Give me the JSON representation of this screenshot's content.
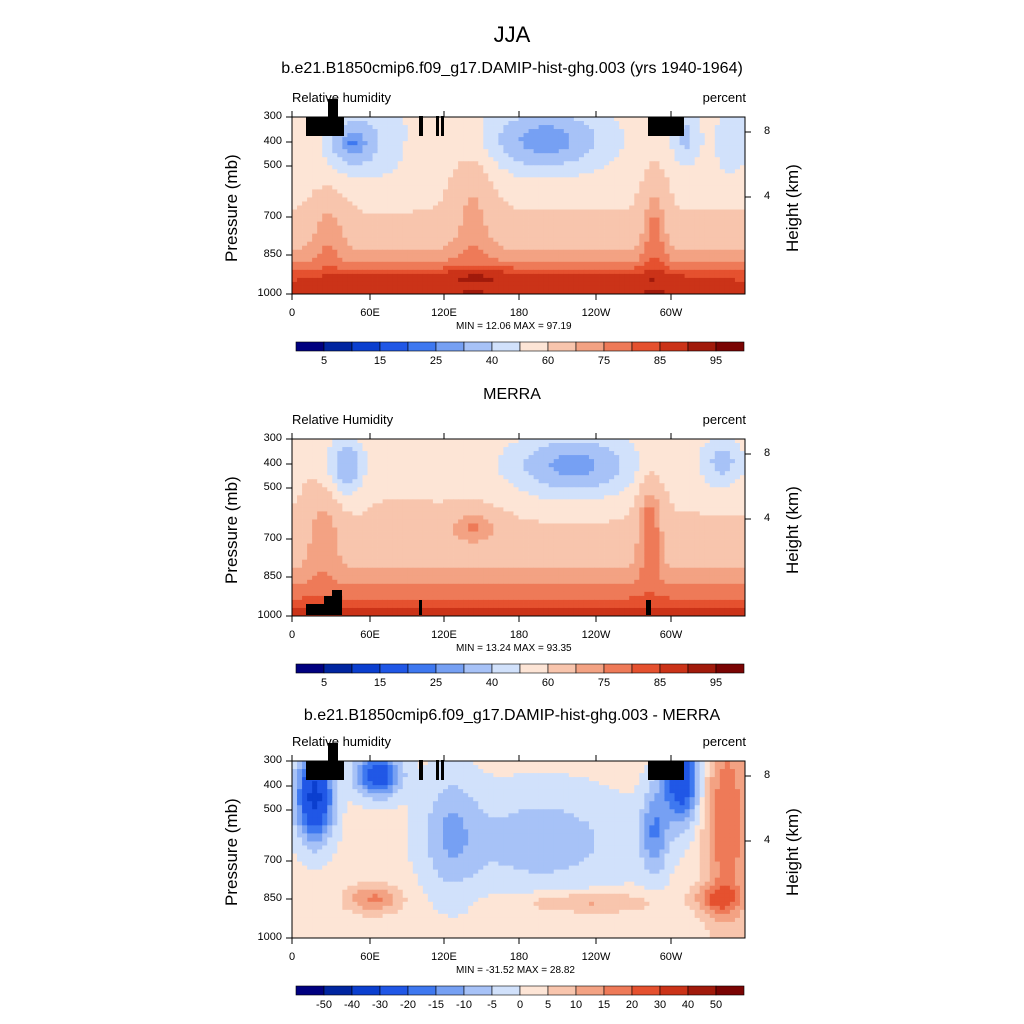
{
  "title": "JJA",
  "panels": [
    {
      "title": "b.e21.B1850cmip6.f09_g17.DAMIP-hist-ghg.003 (yrs 1940-1964)",
      "left_label": "Relative humidity",
      "right_label": "percent",
      "minmax": "MIN =  12.06  MAX =  97.19",
      "colorbar_labels": [
        "5",
        "15",
        "25",
        "40",
        "60",
        "75",
        "85",
        "95"
      ]
    },
    {
      "title": "MERRA",
      "left_label": "Relative Humidity",
      "right_label": "percent",
      "minmax": "MIN =  13.24  MAX =  93.35",
      "colorbar_labels": [
        "5",
        "15",
        "25",
        "40",
        "60",
        "75",
        "85",
        "95"
      ]
    },
    {
      "title": "b.e21.B1850cmip6.f09_g17.DAMIP-hist-ghg.003 - MERRA",
      "left_label": "Relative humidity",
      "right_label": "percent",
      "minmax": "MIN = -31.52  MAX =  28.82",
      "colorbar_labels": [
        "-50",
        "-40",
        "-30",
        "-20",
        "-15",
        "-10",
        "-5",
        "0",
        "5",
        "10",
        "15",
        "20",
        "30",
        "40",
        "50"
      ]
    }
  ],
  "axes": {
    "ylabel": "Pressure (mb)",
    "y2label": "Height (km)",
    "yticks": [
      "300",
      "400",
      "500",
      "700",
      "850",
      "1000"
    ],
    "xticks": [
      "0",
      "60E",
      "120E",
      "180",
      "120W",
      "60W"
    ],
    "y2ticks": [
      "8",
      "4"
    ]
  },
  "colors": {
    "abs_scale": [
      "#00007f",
      "#0025a0",
      "#0b3fcf",
      "#2057e6",
      "#3e78f0",
      "#76a0f3",
      "#a7c2f7",
      "#d1e1fb",
      "#fde5d6",
      "#f8c5ad",
      "#f3a283",
      "#ee7a58",
      "#e5512f",
      "#cb3318",
      "#a11a0b",
      "#7a0403"
    ],
    "diff_scale": [
      "#00007f",
      "#0025a0",
      "#0b3fcf",
      "#2057e6",
      "#3e78f0",
      "#76a0f3",
      "#a7c2f7",
      "#d1e1fb",
      "#fde5d6",
      "#f8c5ad",
      "#f3a283",
      "#ee7a58",
      "#e5512f",
      "#cb3318",
      "#a11a0b",
      "#7a0403"
    ]
  },
  "chart_data": [
    {
      "type": "heatmap",
      "title": "b.e21.B1850cmip6.f09_g17.DAMIP-hist-ghg.003 (yrs 1940-1964)",
      "variable": "Relative humidity",
      "units": "percent",
      "xlabel": "",
      "ylabel": "Pressure (mb)",
      "x": [
        "0",
        "60E",
        "120E",
        "180",
        "120W",
        "60W"
      ],
      "y": [
        "300",
        "400",
        "500",
        "700",
        "850",
        "1000"
      ],
      "min": 12.06,
      "max": 97.19,
      "levels": [
        5,
        10,
        15,
        20,
        25,
        30,
        40,
        50,
        60,
        70,
        75,
        80,
        85,
        90,
        95
      ]
    },
    {
      "type": "heatmap",
      "title": "MERRA",
      "variable": "Relative Humidity",
      "units": "percent",
      "xlabel": "",
      "ylabel": "Pressure (mb)",
      "x": [
        "0",
        "60E",
        "120E",
        "180",
        "120W",
        "60W"
      ],
      "y": [
        "300",
        "400",
        "500",
        "700",
        "850",
        "1000"
      ],
      "min": 13.24,
      "max": 93.35,
      "levels": [
        5,
        10,
        15,
        20,
        25,
        30,
        40,
        50,
        60,
        70,
        75,
        80,
        85,
        90,
        95
      ]
    },
    {
      "type": "heatmap",
      "title": "b.e21.B1850cmip6.f09_g17.DAMIP-hist-ghg.003 - MERRA",
      "variable": "Relative humidity",
      "units": "percent",
      "xlabel": "",
      "ylabel": "Pressure (mb)",
      "x": [
        "0",
        "60E",
        "120E",
        "180",
        "120W",
        "60W"
      ],
      "y": [
        "300",
        "400",
        "500",
        "700",
        "850",
        "1000"
      ],
      "min": -31.52,
      "max": 28.82,
      "levels": [
        -50,
        -40,
        -30,
        -20,
        -15,
        -10,
        -5,
        0,
        5,
        10,
        15,
        20,
        30,
        40,
        50
      ]
    }
  ]
}
